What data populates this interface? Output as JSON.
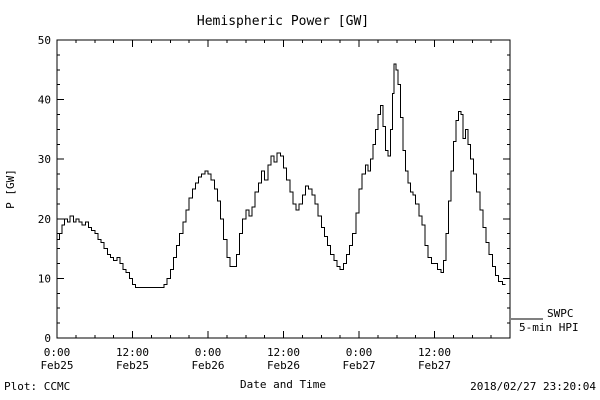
{
  "chart_data": {
    "type": "line",
    "title": "Hemispheric Power [GW]",
    "xlabel": "Date and Time",
    "ylabel": "P [GW]",
    "xlim_hours": [
      0,
      72
    ],
    "ylim": [
      0,
      50
    ],
    "grid": false,
    "line_color": "#000000",
    "x_major_ticks": [
      {
        "hour": 0,
        "time": "0:00",
        "date": "Feb25"
      },
      {
        "hour": 12,
        "time": "12:00",
        "date": "Feb25"
      },
      {
        "hour": 24,
        "time": "0:00",
        "date": "Feb26"
      },
      {
        "hour": 36,
        "time": "12:00",
        "date": "Feb26"
      },
      {
        "hour": 48,
        "time": "0:00",
        "date": "Feb27"
      },
      {
        "hour": 60,
        "time": "12:00",
        "date": "Feb27"
      },
      {
        "hour": 72,
        "time": "",
        "date": ""
      }
    ],
    "x_minor_step_hours": 3,
    "y_major_ticks": [
      0,
      10,
      20,
      30,
      40,
      50
    ],
    "y_minor_step": 2.5,
    "legend": {
      "position": "right-bottom-outside",
      "series_label": "SWPC",
      "series_sublabel": "5-min HPI"
    },
    "series": [
      {
        "name": "SWPC 5-min HPI",
        "step": true,
        "x_unit": "hours since 2018-02-25 00:00",
        "points": [
          [
            0,
            16.5
          ],
          [
            0.4,
            17.5
          ],
          [
            0.8,
            19
          ],
          [
            1.2,
            20
          ],
          [
            1.7,
            19.5
          ],
          [
            2.1,
            20.5
          ],
          [
            2.6,
            19.5
          ],
          [
            3,
            20
          ],
          [
            3.5,
            19.5
          ],
          [
            4,
            19
          ],
          [
            4.5,
            19.5
          ],
          [
            5,
            18.5
          ],
          [
            5.5,
            18
          ],
          [
            6,
            17.5
          ],
          [
            6.5,
            16.5
          ],
          [
            7,
            16
          ],
          [
            7.5,
            15
          ],
          [
            8,
            14
          ],
          [
            8.5,
            13.5
          ],
          [
            9,
            13
          ],
          [
            9.5,
            13.5
          ],
          [
            10,
            12.5
          ],
          [
            10.5,
            11.5
          ],
          [
            11,
            11
          ],
          [
            11.5,
            10
          ],
          [
            12,
            9
          ],
          [
            12.5,
            8.5
          ],
          [
            14,
            8.5
          ],
          [
            15.5,
            8.5
          ],
          [
            16.5,
            8.5
          ],
          [
            17,
            9
          ],
          [
            17.5,
            10
          ],
          [
            18,
            11.5
          ],
          [
            18.5,
            13.5
          ],
          [
            19,
            15.5
          ],
          [
            19.5,
            17.5
          ],
          [
            20,
            19.5
          ],
          [
            20.5,
            21.5
          ],
          [
            21,
            23.5
          ],
          [
            21.5,
            25
          ],
          [
            22,
            26
          ],
          [
            22.5,
            27
          ],
          [
            23,
            27.5
          ],
          [
            23.5,
            28
          ],
          [
            24,
            27.5
          ],
          [
            24.5,
            26.5
          ],
          [
            25,
            25
          ],
          [
            25.5,
            23
          ],
          [
            26,
            20
          ],
          [
            26.5,
            16.5
          ],
          [
            27,
            13.5
          ],
          [
            27.5,
            12
          ],
          [
            28,
            12
          ],
          [
            28.5,
            14
          ],
          [
            29,
            17.5
          ],
          [
            29.5,
            20
          ],
          [
            30,
            21.5
          ],
          [
            30.5,
            20.5
          ],
          [
            31,
            22
          ],
          [
            31.5,
            24.5
          ],
          [
            32,
            26
          ],
          [
            32.5,
            28
          ],
          [
            33,
            26.5
          ],
          [
            33.5,
            29
          ],
          [
            34,
            30.5
          ],
          [
            34.5,
            29.5
          ],
          [
            35,
            31
          ],
          [
            35.5,
            30.5
          ],
          [
            36,
            28.5
          ],
          [
            36.5,
            26.5
          ],
          [
            37,
            24.5
          ],
          [
            37.5,
            22.5
          ],
          [
            38,
            21.5
          ],
          [
            38.5,
            22.5
          ],
          [
            39,
            24
          ],
          [
            39.5,
            25.5
          ],
          [
            40,
            25
          ],
          [
            40.5,
            24
          ],
          [
            41,
            22.5
          ],
          [
            41.5,
            20.5
          ],
          [
            42,
            18.5
          ],
          [
            42.5,
            17
          ],
          [
            43,
            15.5
          ],
          [
            43.5,
            14
          ],
          [
            44,
            13
          ],
          [
            44.5,
            12
          ],
          [
            45,
            11.5
          ],
          [
            45.5,
            12.5
          ],
          [
            46,
            14
          ],
          [
            46.5,
            15.5
          ],
          [
            47,
            17.5
          ],
          [
            47.5,
            21
          ],
          [
            48,
            25
          ],
          [
            48.5,
            27.5
          ],
          [
            49,
            29
          ],
          [
            49.4,
            28
          ],
          [
            49.8,
            30
          ],
          [
            50.2,
            32.5
          ],
          [
            50.6,
            35
          ],
          [
            51,
            37.5
          ],
          [
            51.4,
            39
          ],
          [
            51.8,
            35.5
          ],
          [
            52.2,
            31.5
          ],
          [
            52.6,
            30.5
          ],
          [
            53,
            35
          ],
          [
            53.3,
            41
          ],
          [
            53.6,
            46
          ],
          [
            53.9,
            45
          ],
          [
            54.2,
            42.5
          ],
          [
            54.6,
            37
          ],
          [
            55,
            31.5
          ],
          [
            55.4,
            28
          ],
          [
            55.8,
            26
          ],
          [
            56.2,
            24.5
          ],
          [
            56.6,
            24
          ],
          [
            57,
            22.5
          ],
          [
            57.5,
            20.5
          ],
          [
            58,
            19
          ],
          [
            58.5,
            15.5
          ],
          [
            59,
            13.5
          ],
          [
            59.5,
            12.5
          ],
          [
            60,
            12.5
          ],
          [
            60.5,
            11.5
          ],
          [
            61,
            11
          ],
          [
            61.4,
            13
          ],
          [
            61.8,
            17.5
          ],
          [
            62.2,
            23
          ],
          [
            62.6,
            28
          ],
          [
            63,
            33
          ],
          [
            63.4,
            36.5
          ],
          [
            63.8,
            38
          ],
          [
            64.2,
            37.5
          ],
          [
            64.5,
            33.5
          ],
          [
            64.9,
            35
          ],
          [
            65.3,
            32.5
          ],
          [
            65.7,
            30
          ],
          [
            66.2,
            27.5
          ],
          [
            66.7,
            24.5
          ],
          [
            67.2,
            21.5
          ],
          [
            67.7,
            18.5
          ],
          [
            68.2,
            16
          ],
          [
            68.7,
            14
          ],
          [
            69.2,
            12
          ],
          [
            69.7,
            10.5
          ],
          [
            70.2,
            9.5
          ],
          [
            70.8,
            9
          ],
          [
            71.3,
            9
          ]
        ]
      }
    ]
  },
  "footer": {
    "plot_credit": "Plot: CCMC",
    "timestamp": "2018/02/27 23:20:04"
  }
}
